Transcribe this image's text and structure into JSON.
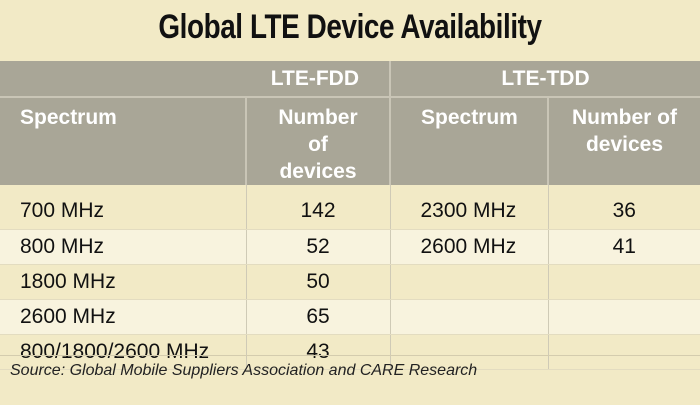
{
  "chart_data": {
    "type": "table",
    "title": "Global LTE Device Availability",
    "groups": [
      "LTE-FDD",
      "LTE-TDD"
    ],
    "columns": [
      "Spectrum",
      "Number of devices",
      "Spectrum",
      "Number of devices"
    ],
    "rows": [
      [
        "700 MHz",
        "142",
        "2300 MHz",
        "36"
      ],
      [
        "800 MHz",
        "52",
        "2600 MHz",
        "41"
      ],
      [
        "1800 MHz",
        "50",
        "",
        ""
      ],
      [
        "2600 MHz",
        "65",
        "",
        ""
      ],
      [
        "800/1800/2600 MHz",
        "43",
        "",
        ""
      ]
    ],
    "source": "Source: Global Mobile Suppliers Association and CARE Research"
  },
  "colors": {
    "header": "#a9a697",
    "background": "#f2eac6",
    "row_alt": "#f8f3de"
  }
}
